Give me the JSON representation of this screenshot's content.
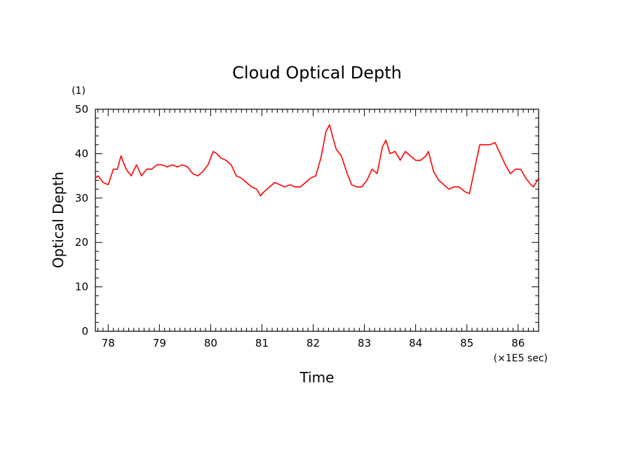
{
  "chart_data": {
    "type": "line",
    "title": "Cloud Optical Depth",
    "xlabel": "Time",
    "ylabel": "Optical Depth",
    "x_unit": "(×1E5 sec)",
    "y_unit": "(1)",
    "xlim": [
      77.75,
      86.4
    ],
    "ylim": [
      0,
      50
    ],
    "x_ticks": [
      78,
      79,
      80,
      81,
      82,
      83,
      84,
      85,
      86
    ],
    "y_ticks": [
      0,
      10,
      20,
      30,
      40,
      50
    ],
    "grid": false,
    "line_color": "#ff0000",
    "series": [
      {
        "x": [
          77.75,
          77.8,
          77.9,
          78.0,
          78.1,
          78.18,
          78.25,
          78.35,
          78.45,
          78.55,
          78.65,
          78.75,
          78.85,
          78.95,
          79.05,
          79.15,
          79.25,
          79.35,
          79.45,
          79.55,
          79.65,
          79.75,
          79.85,
          79.95,
          80.05,
          80.12,
          80.2,
          80.3,
          80.4,
          80.5,
          80.6,
          80.7,
          80.8,
          80.9,
          80.97,
          81.05,
          81.15,
          81.25,
          81.35,
          81.45,
          81.55,
          81.65,
          81.75,
          81.85,
          81.95,
          82.05,
          82.15,
          82.25,
          82.32,
          82.4,
          82.45,
          82.55,
          82.65,
          82.75,
          82.85,
          82.95,
          83.05,
          83.15,
          83.25,
          83.35,
          83.42,
          83.5,
          83.6,
          83.7,
          83.8,
          83.9,
          84.0,
          84.1,
          84.2,
          84.25,
          84.35,
          84.45,
          84.55,
          84.65,
          84.75,
          84.85,
          84.95,
          85.05,
          85.15,
          85.25,
          85.35,
          85.45,
          85.55,
          85.65,
          85.75,
          85.85,
          85.95,
          86.05,
          86.15,
          86.25,
          86.3,
          86.4
        ],
        "values": [
          34.5,
          35,
          33.5,
          33,
          36.5,
          36.5,
          39.5,
          36.5,
          35,
          37.5,
          35,
          36.5,
          36.5,
          37.5,
          37.5,
          37,
          37.5,
          37,
          37.5,
          37,
          35.5,
          35,
          36,
          37.5,
          40.5,
          40,
          39,
          38.5,
          37.5,
          35,
          34.5,
          33.5,
          32.5,
          32,
          30.5,
          31.5,
          32.5,
          33.5,
          33,
          32.5,
          33,
          32.5,
          32.5,
          33.5,
          34.5,
          35,
          39,
          45,
          46.5,
          43,
          41,
          39.5,
          36,
          33,
          32.5,
          32.5,
          34,
          36.5,
          35.5,
          41.5,
          43,
          40,
          40.5,
          38.5,
          40.5,
          39.5,
          38.5,
          38.5,
          39.5,
          40.5,
          36,
          34,
          33,
          32,
          32.5,
          32.5,
          31.5,
          31,
          36.5,
          42,
          42,
          42,
          42.5,
          40,
          37.5,
          35.5,
          36.5,
          36.5,
          34.5,
          33,
          32.5,
          34.5
        ]
      }
    ]
  }
}
